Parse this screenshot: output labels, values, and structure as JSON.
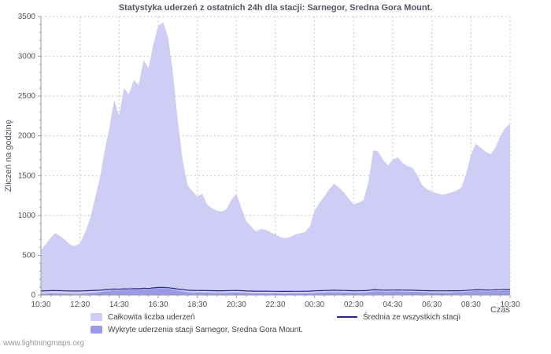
{
  "title": "Statystyka uderzeń z ostatnich 24h dla stacji: Sarnegor, Sredna Gora Mount.",
  "ylabel": "Zliczeń na godzinę",
  "xlabel": "Czas",
  "watermark": "www.lightningmaps.org",
  "legend": {
    "total": "Całkowita liczba uderzeń",
    "detected": "Wykryte uderzenia stacji Sarnegor, Sredna Gora Mount.",
    "average": "Średnia ze wszystkich stacji"
  },
  "colors": {
    "total_fill": "#cdcdf6",
    "detected_fill": "#9a9ae8",
    "average_line": "#2a2a80",
    "grid": "#c8c8c8",
    "axis": "#999999",
    "tick_text": "#555555",
    "title_text": "#555566"
  },
  "chart_data": {
    "type": "area",
    "title": "Statystyka uderzeń z ostatnich 24h dla stacji: Sarnegor, Sredna Gora Mount.",
    "xlabel": "Czas",
    "ylabel": "Zliczeń na godzinę",
    "ylim": [
      0,
      3500
    ],
    "y_ticks": [
      0,
      500,
      1000,
      1500,
      2000,
      2500,
      3000,
      3500
    ],
    "x_ticks": [
      "10:30",
      "12:30",
      "14:30",
      "16:30",
      "18:30",
      "20:30",
      "22:30",
      "00:30",
      "02:30",
      "04:30",
      "06:30",
      "08:30",
      "10:30"
    ],
    "x_resolution_minutes": 15,
    "grid": "dashed",
    "legend_position": "bottom",
    "series": [
      {
        "name": "Całkowita liczba uderzeń",
        "style": "area",
        "values": [
          560,
          640,
          720,
          780,
          740,
          690,
          630,
          615,
          650,
          780,
          950,
          1200,
          1450,
          1800,
          2100,
          2450,
          2250,
          2600,
          2520,
          2700,
          2640,
          2950,
          2850,
          3150,
          3380,
          3430,
          3250,
          2800,
          2200,
          1700,
          1380,
          1300,
          1240,
          1270,
          1140,
          1090,
          1060,
          1050,
          1080,
          1200,
          1270,
          1100,
          930,
          860,
          800,
          830,
          820,
          790,
          760,
          730,
          715,
          730,
          760,
          775,
          790,
          860,
          1060,
          1160,
          1240,
          1330,
          1400,
          1350,
          1290,
          1210,
          1140,
          1160,
          1190,
          1420,
          1820,
          1800,
          1700,
          1630,
          1700,
          1730,
          1660,
          1620,
          1600,
          1510,
          1380,
          1330,
          1300,
          1280,
          1260,
          1270,
          1290,
          1310,
          1350,
          1520,
          1760,
          1900,
          1850,
          1800,
          1770,
          1850,
          2000,
          2100,
          2150
        ]
      },
      {
        "name": "Wykryte uderzenia stacji Sarnegor, Sredna Gora Mount.",
        "style": "area",
        "values": [
          15,
          15,
          20,
          20,
          20,
          15,
          15,
          15,
          15,
          20,
          25,
          30,
          35,
          45,
          50,
          60,
          55,
          65,
          60,
          65,
          65,
          70,
          70,
          80,
          85,
          85,
          80,
          70,
          55,
          45,
          35,
          30,
          30,
          30,
          30,
          25,
          25,
          25,
          25,
          30,
          30,
          25,
          25,
          20,
          20,
          20,
          20,
          20,
          20,
          20,
          15,
          20,
          20,
          20,
          20,
          20,
          25,
          30,
          30,
          35,
          35,
          35,
          30,
          30,
          30,
          30,
          30,
          35,
          45,
          45,
          45,
          40,
          45,
          45,
          40,
          40,
          40,
          40,
          35,
          35,
          30,
          30,
          30,
          30,
          30,
          35,
          35,
          40,
          45,
          50,
          45,
          45,
          45,
          45,
          50,
          55,
          55
        ]
      },
      {
        "name": "Średnia ze wszystkich stacji",
        "style": "line",
        "values": [
          50,
          52,
          55,
          55,
          54,
          52,
          50,
          50,
          50,
          52,
          55,
          58,
          60,
          65,
          70,
          75,
          72,
          78,
          76,
          80,
          78,
          85,
          82,
          90,
          95,
          95,
          92,
          85,
          75,
          68,
          60,
          58,
          56,
          57,
          55,
          54,
          53,
          53,
          54,
          56,
          57,
          54,
          50,
          49,
          48,
          48,
          48,
          47,
          46,
          45,
          45,
          45,
          46,
          46,
          47,
          48,
          52,
          54,
          56,
          58,
          60,
          58,
          57,
          55,
          53,
          54,
          54,
          58,
          65,
          64,
          62,
          60,
          62,
          63,
          61,
          60,
          60,
          58,
          55,
          54,
          53,
          52,
          52,
          52,
          53,
          53,
          54,
          57,
          62,
          65,
          64,
          63,
          62,
          64,
          66,
          68,
          68
        ]
      }
    ]
  }
}
